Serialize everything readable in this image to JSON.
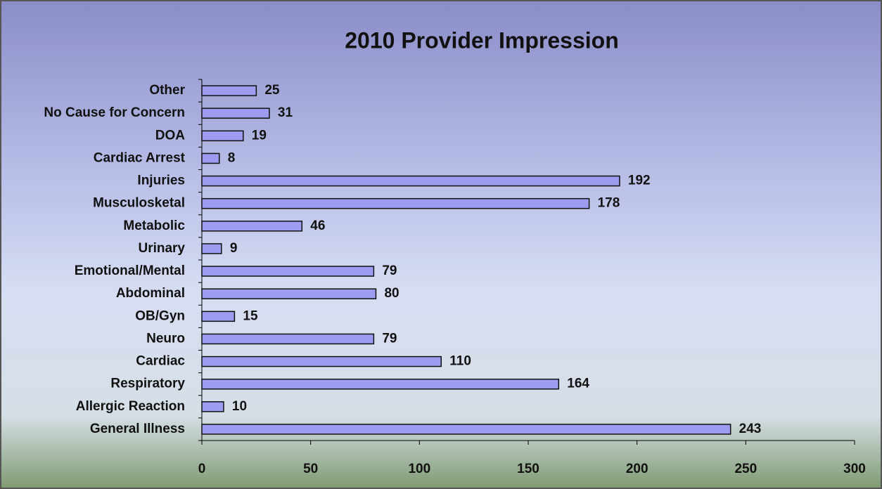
{
  "chart_data": {
    "type": "bar",
    "orientation": "horizontal",
    "title": "2010 Provider Impression",
    "categories": [
      "Other",
      "No Cause for Concern",
      "DOA",
      "Cardiac Arrest",
      "Injuries",
      "Musculosketal",
      "Metabolic",
      "Urinary",
      "Emotional/Mental",
      "Abdominal",
      "OB/Gyn",
      "Neuro",
      "Cardiac",
      "Respiratory",
      "Allergic Reaction",
      "General Illness"
    ],
    "values": [
      25,
      31,
      19,
      8,
      192,
      178,
      46,
      9,
      79,
      80,
      15,
      79,
      110,
      164,
      10,
      243
    ],
    "color": "#9d9cf0",
    "xlim": [
      0,
      300
    ],
    "xticks": [
      0,
      50,
      100,
      150,
      200,
      250,
      300
    ],
    "grid": false
  }
}
